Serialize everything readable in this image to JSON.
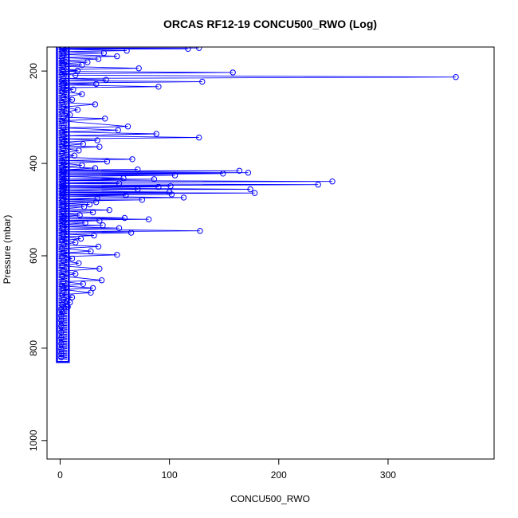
{
  "chart_data": {
    "type": "line",
    "title": "ORCAS RF12-19 CONCU500_RWO (Log)",
    "xlabel": "CONCU500_RWO",
    "ylabel": "Pressure (mbar)",
    "xlim": [
      -12,
      397
    ],
    "ylim": [
      1040,
      148
    ],
    "y_reversed": true,
    "grid": false,
    "legend": "none",
    "x_ticks": [
      0,
      100,
      200,
      300
    ],
    "y_ticks": [
      200,
      400,
      600,
      800,
      1000
    ],
    "series_color": "#0000ff",
    "marker": "open-circle",
    "series": [
      {
        "points": [
          [
            2,
            150
          ],
          [
            127,
            150
          ],
          [
            3,
            151
          ],
          [
            117,
            152
          ],
          [
            2,
            153
          ],
          [
            61,
            156
          ],
          [
            2,
            158
          ],
          [
            40,
            161
          ],
          [
            3,
            164
          ],
          [
            52,
            168
          ],
          [
            2,
            171
          ],
          [
            35,
            174
          ],
          [
            2,
            178
          ],
          [
            25,
            181
          ],
          [
            2,
            184
          ],
          [
            20,
            187
          ],
          [
            3,
            190
          ],
          [
            72,
            194
          ],
          [
            2,
            197
          ],
          [
            16,
            199
          ],
          [
            3,
            201
          ],
          [
            158,
            203
          ],
          [
            2,
            206
          ],
          [
            14,
            209
          ],
          [
            362,
            213
          ],
          [
            3,
            216
          ],
          [
            42,
            219
          ],
          [
            2,
            221
          ],
          [
            130,
            223
          ],
          [
            3,
            226
          ],
          [
            33,
            228
          ],
          [
            2,
            230
          ],
          [
            90,
            234
          ],
          [
            3,
            236
          ],
          [
            12,
            240
          ],
          [
            2,
            244
          ],
          [
            20,
            250
          ],
          [
            3,
            256
          ],
          [
            11,
            262
          ],
          [
            2,
            268
          ],
          [
            32,
            272
          ],
          [
            3,
            278
          ],
          [
            16,
            284
          ],
          [
            2,
            290
          ],
          [
            9,
            295
          ],
          [
            3,
            300
          ],
          [
            41,
            303
          ],
          [
            2,
            308
          ],
          [
            62,
            320
          ],
          [
            3,
            323
          ],
          [
            53,
            328
          ],
          [
            2,
            332
          ],
          [
            88,
            336
          ],
          [
            3,
            340
          ],
          [
            127,
            344
          ],
          [
            2,
            347
          ],
          [
            34,
            350
          ],
          [
            3,
            354
          ],
          [
            21,
            358
          ],
          [
            2,
            362
          ],
          [
            36,
            364
          ],
          [
            3,
            368
          ],
          [
            17,
            372
          ],
          [
            2,
            378
          ],
          [
            13,
            383
          ],
          [
            3,
            387
          ],
          [
            66,
            391
          ],
          [
            2,
            394
          ],
          [
            43,
            396
          ],
          [
            3,
            400
          ],
          [
            20,
            404
          ],
          [
            2,
            408
          ],
          [
            32,
            410
          ],
          [
            3,
            414
          ],
          [
            71,
            413
          ],
          [
            2,
            416
          ],
          [
            164,
            416
          ],
          [
            3,
            419
          ],
          [
            172,
            420
          ],
          [
            2,
            422
          ],
          [
            149,
            422
          ],
          [
            3,
            425
          ],
          [
            105,
            426
          ],
          [
            2,
            428
          ],
          [
            58,
            432
          ],
          [
            3,
            434
          ],
          [
            86,
            434
          ],
          [
            2,
            437
          ],
          [
            249,
            439
          ],
          [
            3,
            441
          ],
          [
            54,
            443
          ],
          [
            2,
            444
          ],
          [
            236,
            446
          ],
          [
            3,
            448
          ],
          [
            101,
            449
          ],
          [
            2,
            450
          ],
          [
            90,
            451
          ],
          [
            3,
            453
          ],
          [
            174,
            456
          ],
          [
            2,
            457
          ],
          [
            71,
            456
          ],
          [
            3,
            460
          ],
          [
            100,
            462
          ],
          [
            2,
            463
          ],
          [
            178,
            464
          ],
          [
            3,
            466
          ],
          [
            102,
            467
          ],
          [
            2,
            468
          ],
          [
            60,
            469
          ],
          [
            3,
            471
          ],
          [
            113,
            474
          ],
          [
            2,
            476
          ],
          [
            34,
            476
          ],
          [
            3,
            479
          ],
          [
            75,
            479
          ],
          [
            2,
            482
          ],
          [
            33,
            484
          ],
          [
            3,
            487
          ],
          [
            27,
            489
          ],
          [
            2,
            492
          ],
          [
            22,
            494
          ],
          [
            3,
            498
          ],
          [
            45,
            501
          ],
          [
            2,
            503
          ],
          [
            30,
            506
          ],
          [
            3,
            509
          ],
          [
            18,
            512
          ],
          [
            2,
            515
          ],
          [
            59,
            518
          ],
          [
            3,
            519
          ],
          [
            81,
            521
          ],
          [
            2,
            523
          ],
          [
            36,
            524
          ],
          [
            3,
            526
          ],
          [
            23,
            529
          ],
          [
            2,
            532
          ],
          [
            39,
            534
          ],
          [
            3,
            537
          ],
          [
            54,
            540
          ],
          [
            2,
            542
          ],
          [
            128,
            546
          ],
          [
            3,
            548
          ],
          [
            65,
            550
          ],
          [
            2,
            553
          ],
          [
            31,
            556
          ],
          [
            3,
            559
          ],
          [
            19,
            563
          ],
          [
            2,
            567
          ],
          [
            14,
            571
          ],
          [
            3,
            576
          ],
          [
            35,
            580
          ],
          [
            2,
            584
          ],
          [
            28,
            590
          ],
          [
            3,
            594
          ],
          [
            52,
            598
          ],
          [
            2,
            602
          ],
          [
            11,
            606
          ],
          [
            3,
            611
          ],
          [
            17,
            616
          ],
          [
            2,
            622
          ],
          [
            36,
            628
          ],
          [
            3,
            633
          ],
          [
            14,
            639
          ],
          [
            2,
            644
          ],
          [
            38,
            653
          ],
          [
            3,
            656
          ],
          [
            21,
            661
          ],
          [
            2,
            665
          ],
          [
            30,
            670
          ],
          [
            3,
            673
          ],
          [
            28,
            680
          ],
          [
            2,
            684
          ],
          [
            11,
            690
          ],
          [
            3,
            695
          ],
          [
            9,
            701
          ],
          [
            2,
            706
          ],
          [
            7,
            711
          ],
          [
            1,
            716
          ],
          [
            2,
            722
          ],
          [
            1,
            730
          ],
          [
            1,
            740
          ],
          [
            1,
            752
          ],
          [
            1,
            765
          ],
          [
            1,
            778
          ],
          [
            1,
            790
          ],
          [
            1,
            802
          ],
          [
            1,
            812
          ],
          [
            1,
            820
          ]
        ],
        "dense_cluster": {
          "x": [
            0,
            5
          ],
          "y_range": [
            150,
            823
          ]
        }
      }
    ]
  }
}
